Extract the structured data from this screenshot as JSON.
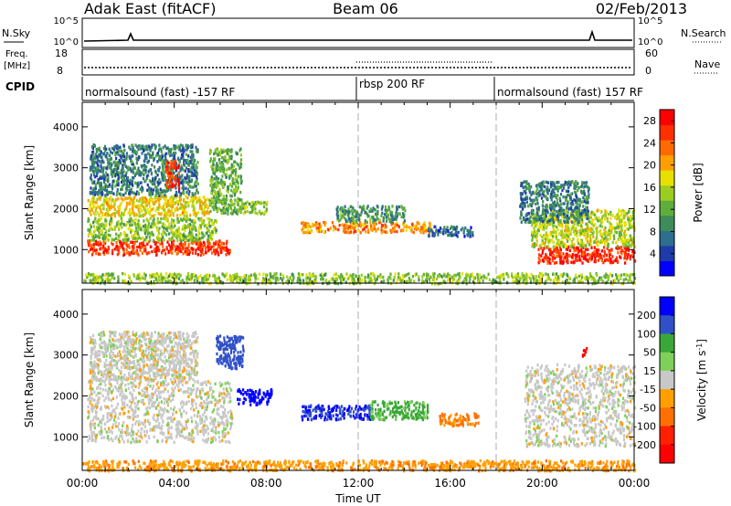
{
  "header": {
    "title": "Adak East (fitACF)",
    "beam": "Beam 06",
    "date": "02/Feb/2013"
  },
  "noise_panel": {
    "left_label": "N.Sky",
    "right_label": "N.Search",
    "ticks_left": [
      "10^5",
      "10^0"
    ],
    "ticks_right": [
      "10^5",
      "10^0"
    ]
  },
  "freq_panel": {
    "left_label_1": "Freq.",
    "left_label_2": "[MHz]",
    "ticks_left": [
      "18",
      "8"
    ],
    "right_label": "Nave",
    "ticks_right": [
      "60",
      "0"
    ]
  },
  "cpid_panel": {
    "label": "CPID",
    "segments": [
      {
        "name": "normalsound (fast) -157 RF",
        "start": 0,
        "end": 12
      },
      {
        "name": "rbsp 200 RF",
        "start": 12,
        "end": 18
      },
      {
        "name": "normalsound (fast) 157 RF",
        "start": 18,
        "end": 24
      }
    ]
  },
  "chart_data": [
    {
      "type": "heatmap",
      "title": "",
      "xlabel": "Time UT",
      "ylabel": "Slant Range [km]",
      "xlim": [
        0,
        24
      ],
      "ylim": [
        180,
        4600
      ],
      "x_ticks": [
        "00:00",
        "04:00",
        "08:00",
        "12:00",
        "16:00",
        "20:00",
        "00:00"
      ],
      "y_ticks": [
        1000,
        2000,
        3000,
        4000
      ],
      "colorbar": {
        "label": "Power [dB]",
        "ticks": [
          4,
          8,
          12,
          16,
          20,
          24,
          28
        ],
        "range": [
          0,
          30
        ],
        "colors": [
          "#0000ff",
          "#1e3ca8",
          "#2e6e8e",
          "#3d8c5a",
          "#5fae3c",
          "#9ccc20",
          "#e8e000",
          "#ffa000",
          "#ff6a00",
          "#ff3000",
          "#ff0000"
        ]
      },
      "regions": [
        {
          "t": [
            0.2,
            6.4
          ],
          "r": [
            900,
            1250
          ],
          "value": 26
        },
        {
          "t": [
            0.2,
            5.8
          ],
          "r": [
            1250,
            1800
          ],
          "value": 14
        },
        {
          "t": [
            0.2,
            5.5
          ],
          "r": [
            1850,
            2350
          ],
          "value": 18
        },
        {
          "t": [
            0.3,
            5.0
          ],
          "r": [
            2350,
            3600
          ],
          "value": 8
        },
        {
          "t": [
            3.6,
            4.2
          ],
          "r": [
            2500,
            3200
          ],
          "value": 26
        },
        {
          "t": [
            5.5,
            6.9
          ],
          "r": [
            1900,
            3500
          ],
          "value": 12
        },
        {
          "t": [
            6.8,
            8.0
          ],
          "r": [
            1900,
            2200
          ],
          "value": 14
        },
        {
          "t": [
            9.5,
            15.2
          ],
          "r": [
            1450,
            1700
          ],
          "value": 22
        },
        {
          "t": [
            11.0,
            14.0
          ],
          "r": [
            1700,
            2100
          ],
          "value": 10
        },
        {
          "t": [
            15.0,
            17.0
          ],
          "r": [
            1350,
            1600
          ],
          "value": 6
        },
        {
          "t": [
            19.8,
            24.0
          ],
          "r": [
            700,
            1100
          ],
          "value": 27
        },
        {
          "t": [
            19.5,
            24.0
          ],
          "r": [
            1100,
            2000
          ],
          "value": 16
        },
        {
          "t": [
            19.0,
            22.0
          ],
          "r": [
            1700,
            2700
          ],
          "value": 8
        },
        {
          "t": [
            0.0,
            24.0
          ],
          "r": [
            200,
            450
          ],
          "value": 14
        }
      ]
    },
    {
      "type": "heatmap",
      "title": "",
      "xlabel": "Time UT",
      "ylabel": "Slant Range [km]",
      "xlim": [
        0,
        24
      ],
      "ylim": [
        180,
        4600
      ],
      "x_ticks": [
        "00:00",
        "04:00",
        "08:00",
        "12:00",
        "16:00",
        "20:00",
        "00:00"
      ],
      "y_ticks": [
        1000,
        2000,
        3000,
        4000
      ],
      "colorbar": {
        "label": "Velocity [m s^-1]",
        "ticks": [
          200,
          100,
          50,
          15,
          -15,
          -50,
          -100,
          -200
        ],
        "colors": [
          "#0000ff",
          "#3050c8",
          "#3aa838",
          "#7fd05a",
          "#c8c8c8",
          "#ffa000",
          "#ff7000",
          "#ff2000",
          "#ff0000"
        ]
      },
      "regions": [
        {
          "t": [
            0.2,
            6.5
          ],
          "r": [
            900,
            2400
          ],
          "value": 0
        },
        {
          "t": [
            0.3,
            5.0
          ],
          "r": [
            2400,
            3600
          ],
          "value": 0
        },
        {
          "t": [
            5.8,
            7.0
          ],
          "r": [
            2700,
            3500
          ],
          "value": 150
        },
        {
          "t": [
            6.7,
            8.2
          ],
          "r": [
            1800,
            2200
          ],
          "value": 220
        },
        {
          "t": [
            9.5,
            12.5
          ],
          "r": [
            1450,
            1800
          ],
          "value": 200
        },
        {
          "t": [
            12.5,
            15.0
          ],
          "r": [
            1450,
            1900
          ],
          "value": 60
        },
        {
          "t": [
            15.5,
            17.2
          ],
          "r": [
            1300,
            1600
          ],
          "value": -60
        },
        {
          "t": [
            19.2,
            24.0
          ],
          "r": [
            800,
            2800
          ],
          "value": 0
        },
        {
          "t": [
            21.7,
            22.0
          ],
          "r": [
            3000,
            3200
          ],
          "value": -220
        },
        {
          "t": [
            0.0,
            24.0
          ],
          "r": [
            200,
            450
          ],
          "value": -40
        }
      ]
    }
  ]
}
